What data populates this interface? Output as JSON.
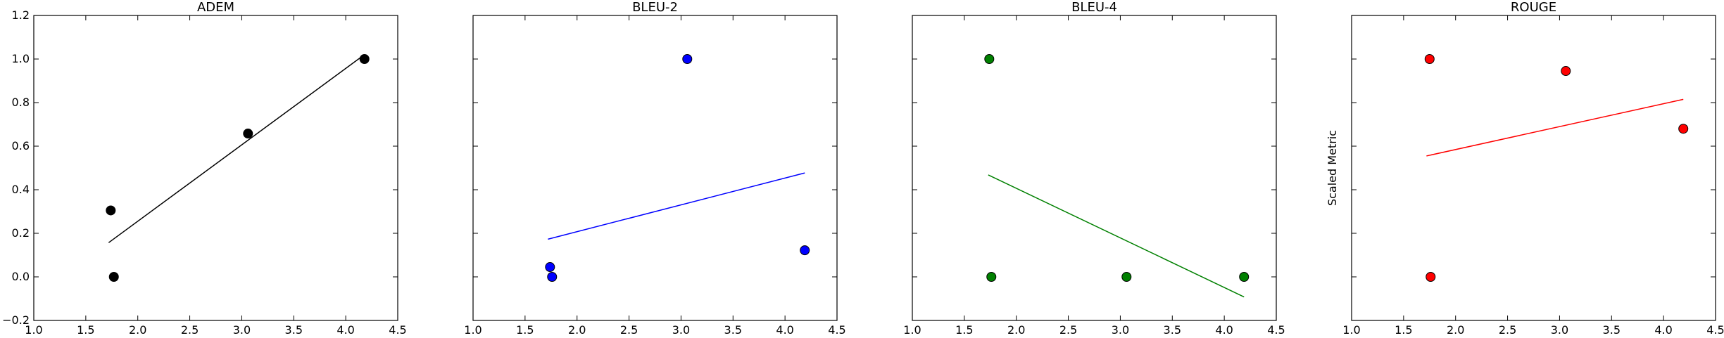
{
  "chart_data": [
    {
      "type": "scatter",
      "title": "ADEM",
      "xlabel": "",
      "ylabel": "",
      "xlim": [
        1.0,
        4.5
      ],
      "ylim": [
        -0.2,
        1.2
      ],
      "xticks": [
        "1.0",
        "1.5",
        "2.0",
        "2.5",
        "3.0",
        "3.5",
        "4.0",
        "4.5"
      ],
      "yticks": [
        "−0.2",
        "0.0",
        "0.2",
        "0.4",
        "0.6",
        "0.8",
        "1.0",
        "1.2"
      ],
      "show_yticklabels": true,
      "color": "#000000",
      "points": [
        {
          "x": 1.74,
          "y": 0.305
        },
        {
          "x": 1.77,
          "y": 0.0
        },
        {
          "x": 3.06,
          "y": 0.658
        },
        {
          "x": 4.18,
          "y": 1.0
        }
      ],
      "fit_line": {
        "x": [
          1.72,
          4.18
        ],
        "y": [
          0.157,
          1.02
        ]
      }
    },
    {
      "type": "scatter",
      "title": "BLEU-2",
      "xlabel": "",
      "ylabel": "",
      "xlim": [
        1.0,
        4.5
      ],
      "ylim": [
        -0.2,
        1.2
      ],
      "xticks": [
        "1.0",
        "1.5",
        "2.0",
        "2.5",
        "3.0",
        "3.5",
        "4.0",
        "4.5"
      ],
      "yticks": [],
      "show_yticklabels": false,
      "color": "#0000ff",
      "points": [
        {
          "x": 1.74,
          "y": 0.045
        },
        {
          "x": 1.76,
          "y": 0.0
        },
        {
          "x": 3.06,
          "y": 1.0
        },
        {
          "x": 4.19,
          "y": 0.122
        }
      ],
      "fit_line": {
        "x": [
          1.72,
          4.19
        ],
        "y": [
          0.173,
          0.477
        ]
      }
    },
    {
      "type": "scatter",
      "title": "BLEU-4",
      "xlabel": "",
      "ylabel": "",
      "xlim": [
        1.0,
        4.5
      ],
      "ylim": [
        -0.2,
        1.2
      ],
      "xticks": [
        "1.0",
        "1.5",
        "2.0",
        "2.5",
        "3.0",
        "3.5",
        "4.0",
        "4.5"
      ],
      "yticks": [],
      "show_yticklabels": false,
      "color": "#008000",
      "points": [
        {
          "x": 1.74,
          "y": 1.0
        },
        {
          "x": 1.76,
          "y": 0.0
        },
        {
          "x": 3.06,
          "y": 0.0
        },
        {
          "x": 4.19,
          "y": 0.0
        }
      ],
      "fit_line": {
        "x": [
          1.73,
          4.19
        ],
        "y": [
          0.468,
          -0.092
        ]
      }
    },
    {
      "type": "scatter",
      "title": "ROUGE",
      "xlabel": "",
      "ylabel": "Scaled Metric",
      "xlim": [
        1.0,
        4.5
      ],
      "ylim": [
        -0.2,
        1.2
      ],
      "xticks": [
        "1.0",
        "1.5",
        "2.0",
        "2.5",
        "3.0",
        "3.5",
        "4.0",
        "4.5"
      ],
      "yticks": [],
      "show_yticklabels": false,
      "color": "#ff0000",
      "points": [
        {
          "x": 1.75,
          "y": 1.0
        },
        {
          "x": 1.76,
          "y": 0.0
        },
        {
          "x": 3.06,
          "y": 0.945
        },
        {
          "x": 4.19,
          "y": 0.68
        }
      ],
      "fit_line": {
        "x": [
          1.72,
          4.19
        ],
        "y": [
          0.555,
          0.815
        ]
      }
    }
  ]
}
